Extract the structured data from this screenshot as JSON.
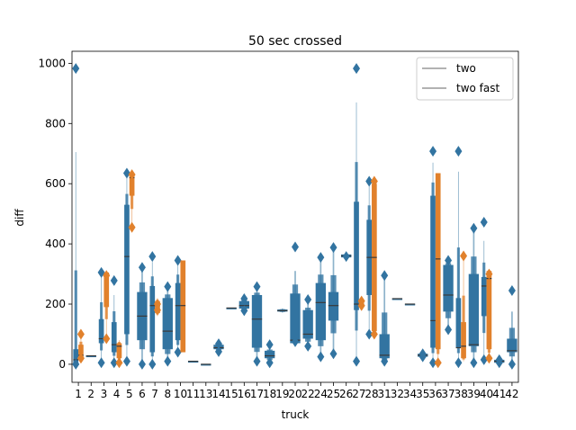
{
  "chart_data": {
    "type": "boxen",
    "title": "50 sec crossed",
    "xlabel": "truck",
    "ylabel": "diff",
    "ylim": [
      -60,
      1040
    ],
    "yticks": [
      0,
      200,
      400,
      600,
      800,
      1000
    ],
    "categories": [
      "1",
      "2",
      "3",
      "4",
      "5",
      "6",
      "7",
      "8",
      "10",
      "11",
      "13",
      "14",
      "15",
      "16",
      "17",
      "18",
      "19",
      "20",
      "22",
      "24",
      "25",
      "26",
      "27",
      "28",
      "31",
      "32",
      "34",
      "35",
      "36",
      "37",
      "38",
      "39",
      "40",
      "41",
      "42"
    ],
    "series": [
      {
        "name": "two",
        "color": "#3274a1"
      },
      {
        "name": "two fast",
        "color": "#e1812c"
      }
    ],
    "legend": {
      "position": "top-right",
      "entries": [
        "two",
        "two fast"
      ]
    },
    "grid": false,
    "boxes": [
      {
        "category": "1",
        "series": 0,
        "q1": 0,
        "median": 15,
        "q3": 50,
        "whisker_low": -10,
        "whisker_high": 705,
        "outliers": [
          983,
          0
        ]
      },
      {
        "category": "1",
        "series": 1,
        "q1": 15,
        "median": 30,
        "q3": 65,
        "whisker_low": 10,
        "whisker_high": 90,
        "outliers": [
          100,
          20
        ]
      },
      {
        "category": "2",
        "series": 0,
        "q1": 28,
        "median": 28,
        "q3": 28,
        "whisker_low": 28,
        "whisker_high": 28,
        "outliers": []
      },
      {
        "category": "3",
        "series": 0,
        "q1": 70,
        "median": 85,
        "q3": 150,
        "whisker_low": 10,
        "whisker_high": 290,
        "outliers": [
          305,
          5
        ]
      },
      {
        "category": "3",
        "series": 1,
        "q1": 190,
        "median": 300,
        "q3": 305,
        "whisker_low": 90,
        "whisker_high": 305,
        "outliers": [
          85,
          295
        ]
      },
      {
        "category": "4",
        "series": 0,
        "q1": 40,
        "median": 65,
        "q3": 140,
        "whisker_low": 10,
        "whisker_high": 230,
        "outliers": [
          278,
          5
        ]
      },
      {
        "category": "4",
        "series": 1,
        "q1": 20,
        "median": 60,
        "q3": 70,
        "whisker_low": 10,
        "whisker_high": 80,
        "outliers": [
          5
        ]
      },
      {
        "category": "5",
        "series": 0,
        "q1": 100,
        "median": 358,
        "q3": 530,
        "whisker_low": 10,
        "whisker_high": 620,
        "outliers": [
          635,
          10
        ]
      },
      {
        "category": "5",
        "series": 1,
        "q1": 560,
        "median": 620,
        "q3": 630,
        "whisker_low": 450,
        "whisker_high": 635,
        "outliers": [
          455,
          630
        ]
      },
      {
        "category": "6",
        "series": 0,
        "q1": 80,
        "median": 160,
        "q3": 240,
        "whisker_low": 5,
        "whisker_high": 320,
        "outliers": [
          322,
          0
        ]
      },
      {
        "category": "7",
        "series": 0,
        "q1": 40,
        "median": 195,
        "q3": 260,
        "whisker_low": 5,
        "whisker_high": 340,
        "outliers": [
          358,
          0
        ]
      },
      {
        "category": "7",
        "series": 1,
        "q1": 170,
        "median": 195,
        "q3": 210,
        "whisker_low": 160,
        "whisker_high": 220,
        "outliers": [
          200,
          180
        ]
      },
      {
        "category": "8",
        "series": 0,
        "q1": 50,
        "median": 110,
        "q3": 220,
        "whisker_low": 10,
        "whisker_high": 250,
        "outliers": [
          258,
          10
        ]
      },
      {
        "category": "10",
        "series": 0,
        "q1": 80,
        "median": 195,
        "q3": 270,
        "whisker_low": 40,
        "whisker_high": 340,
        "outliers": [
          345,
          40
        ]
      },
      {
        "category": "10",
        "series": 1,
        "q1": 40,
        "median": 195,
        "q3": 345,
        "whisker_low": 40,
        "whisker_high": 345,
        "outliers": []
      },
      {
        "category": "11",
        "series": 0,
        "q1": 10,
        "median": 10,
        "q3": 10,
        "whisker_low": 10,
        "whisker_high": 10,
        "outliers": []
      },
      {
        "category": "13",
        "series": 0,
        "q1": 0,
        "median": 0,
        "q3": 0,
        "whisker_low": 0,
        "whisker_high": 0,
        "outliers": []
      },
      {
        "category": "14",
        "series": 0,
        "q1": 50,
        "median": 55,
        "q3": 65,
        "whisker_low": 45,
        "whisker_high": 70,
        "outliers": [
          68,
          42
        ]
      },
      {
        "category": "15",
        "series": 0,
        "q1": 187,
        "median": 187,
        "q3": 187,
        "whisker_low": 187,
        "whisker_high": 187,
        "outliers": []
      },
      {
        "category": "16",
        "series": 0,
        "q1": 185,
        "median": 195,
        "q3": 210,
        "whisker_low": 180,
        "whisker_high": 220,
        "outliers": [
          218,
          178
        ]
      },
      {
        "category": "17",
        "series": 0,
        "q1": 55,
        "median": 150,
        "q3": 230,
        "whisker_low": 20,
        "whisker_high": 250,
        "outliers": [
          258,
          10
        ]
      },
      {
        "category": "18",
        "series": 0,
        "q1": 20,
        "median": 28,
        "q3": 45,
        "whisker_low": 5,
        "whisker_high": 55,
        "outliers": [
          65,
          5
        ]
      },
      {
        "category": "19",
        "series": 0,
        "q1": 175,
        "median": 178,
        "q3": 182,
        "whisker_low": 172,
        "whisker_high": 185,
        "outliers": []
      },
      {
        "category": "20",
        "series": 0,
        "q1": 70,
        "median": 80,
        "q3": 235,
        "whisker_low": 70,
        "whisker_high": 310,
        "outliers": [
          390,
          75
        ]
      },
      {
        "category": "22",
        "series": 0,
        "q1": 85,
        "median": 100,
        "q3": 180,
        "whisker_low": 60,
        "whisker_high": 200,
        "outliers": [
          215,
          60
        ]
      },
      {
        "category": "24",
        "series": 0,
        "q1": 80,
        "median": 205,
        "q3": 270,
        "whisker_low": 30,
        "whisker_high": 340,
        "outliers": [
          355,
          25
        ]
      },
      {
        "category": "25",
        "series": 0,
        "q1": 145,
        "median": 195,
        "q3": 240,
        "whisker_low": 40,
        "whisker_high": 380,
        "outliers": [
          388,
          35
        ]
      },
      {
        "category": "26",
        "series": 0,
        "q1": 355,
        "median": 360,
        "q3": 365,
        "whisker_low": 355,
        "whisker_high": 365,
        "outliers": [
          358
        ]
      },
      {
        "category": "27",
        "series": 0,
        "q1": 180,
        "median": 200,
        "q3": 540,
        "whisker_low": 10,
        "whisker_high": 870,
        "outliers": [
          983,
          10
        ]
      },
      {
        "category": "27",
        "series": 1,
        "q1": 190,
        "median": 198,
        "q3": 215,
        "whisker_low": 185,
        "whisker_high": 220,
        "outliers": [
          210,
          195
        ]
      },
      {
        "category": "28",
        "series": 0,
        "q1": 230,
        "median": 355,
        "q3": 480,
        "whisker_low": 100,
        "whisker_high": 600,
        "outliers": [
          608,
          100
        ]
      },
      {
        "category": "28",
        "series": 1,
        "q1": 110,
        "median": 355,
        "q3": 600,
        "whisker_low": 100,
        "whisker_high": 605,
        "outliers": [
          608,
          100
        ]
      },
      {
        "category": "31",
        "series": 0,
        "q1": 20,
        "median": 30,
        "q3": 100,
        "whisker_low": 10,
        "whisker_high": 280,
        "outliers": [
          295,
          10
        ]
      },
      {
        "category": "32",
        "series": 0,
        "q1": 218,
        "median": 218,
        "q3": 218,
        "whisker_low": 218,
        "whisker_high": 218,
        "outliers": []
      },
      {
        "category": "34",
        "series": 0,
        "q1": 200,
        "median": 200,
        "q3": 200,
        "whisker_low": 200,
        "whisker_high": 200,
        "outliers": []
      },
      {
        "category": "35",
        "series": 0,
        "q1": 25,
        "median": 30,
        "q3": 35,
        "whisker_low": 22,
        "whisker_high": 38,
        "outliers": [
          35,
          25
        ]
      },
      {
        "category": "36",
        "series": 0,
        "q1": 55,
        "median": 145,
        "q3": 560,
        "whisker_low": 10,
        "whisker_high": 670,
        "outliers": [
          708,
          5
        ]
      },
      {
        "category": "36",
        "series": 1,
        "q1": 50,
        "median": 350,
        "q3": 635,
        "whisker_low": 10,
        "whisker_high": 635,
        "outliers": [
          5
        ]
      },
      {
        "category": "37",
        "series": 0,
        "q1": 175,
        "median": 230,
        "q3": 330,
        "whisker_low": 120,
        "whisker_high": 345,
        "outliers": [
          345,
          115
        ]
      },
      {
        "category": "38",
        "series": 0,
        "q1": 55,
        "median": 55,
        "q3": 220,
        "whisker_low": 10,
        "whisker_high": 640,
        "outliers": [
          708,
          5
        ]
      },
      {
        "category": "38",
        "series": 1,
        "q1": 20,
        "median": 60,
        "q3": 140,
        "whisker_low": 10,
        "whisker_high": 360,
        "outliers": [
          360
        ]
      },
      {
        "category": "39",
        "series": 0,
        "q1": 60,
        "median": 65,
        "q3": 300,
        "whisker_low": 10,
        "whisker_high": 445,
        "outliers": [
          452,
          5
        ]
      },
      {
        "category": "40",
        "series": 0,
        "q1": 160,
        "median": 260,
        "q3": 290,
        "whisker_low": 20,
        "whisker_high": 410,
        "outliers": [
          472,
          15
        ]
      },
      {
        "category": "40",
        "series": 1,
        "q1": 50,
        "median": 285,
        "q3": 310,
        "whisker_low": 20,
        "whisker_high": 315,
        "outliers": [
          20,
          300
        ]
      },
      {
        "category": "41",
        "series": 0,
        "q1": 5,
        "median": 10,
        "q3": 15,
        "whisker_low": 0,
        "whisker_high": 20,
        "outliers": [
          15,
          5
        ]
      },
      {
        "category": "42",
        "series": 0,
        "q1": 40,
        "median": 45,
        "q3": 85,
        "whisker_low": 5,
        "whisker_high": 175,
        "outliers": [
          245,
          0
        ]
      }
    ]
  }
}
